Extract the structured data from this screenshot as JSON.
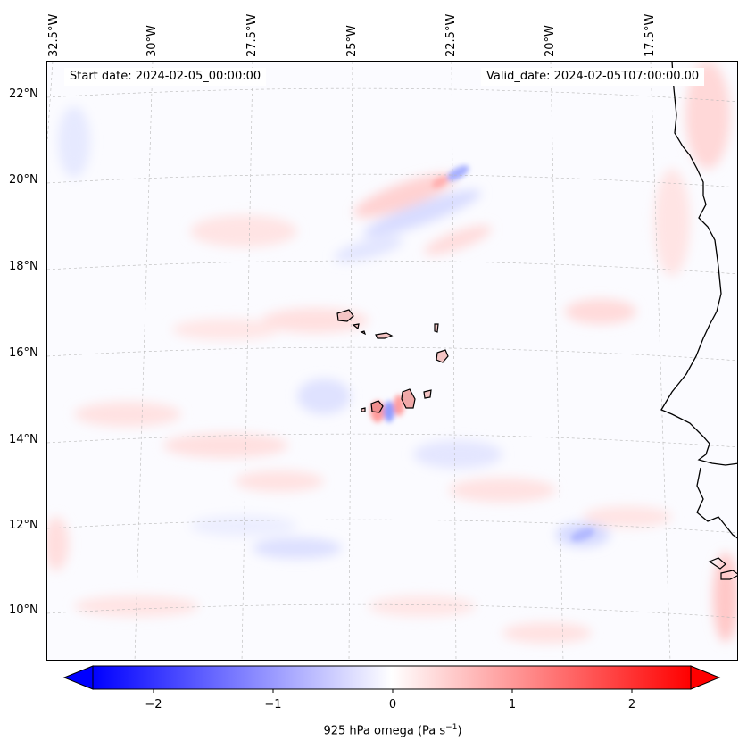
{
  "map": {
    "info": {
      "start": "Start date: 2024-02-05_00:00:00",
      "valid": "Valid_date: 2024-02-05T07:00:00.00"
    },
    "lon_labels": [
      "32.5°W",
      "30°W",
      "27.5°W",
      "25°W",
      "22.5°W",
      "20°W",
      "17.5°W"
    ],
    "lat_labels": [
      "22°N",
      "20°N",
      "18°N",
      "16°N",
      "14°N",
      "12°N",
      "10°N"
    ],
    "colormap": {
      "negative": "#0000ff",
      "zero": "#ffffff",
      "positive": "#ff0000"
    }
  },
  "colorbar": {
    "ticks": [
      "−2",
      "−1",
      "0",
      "1",
      "2"
    ],
    "label_main": "925 hPa omega (Pa s",
    "label_sup": "−1",
    "label_end": ")"
  }
}
